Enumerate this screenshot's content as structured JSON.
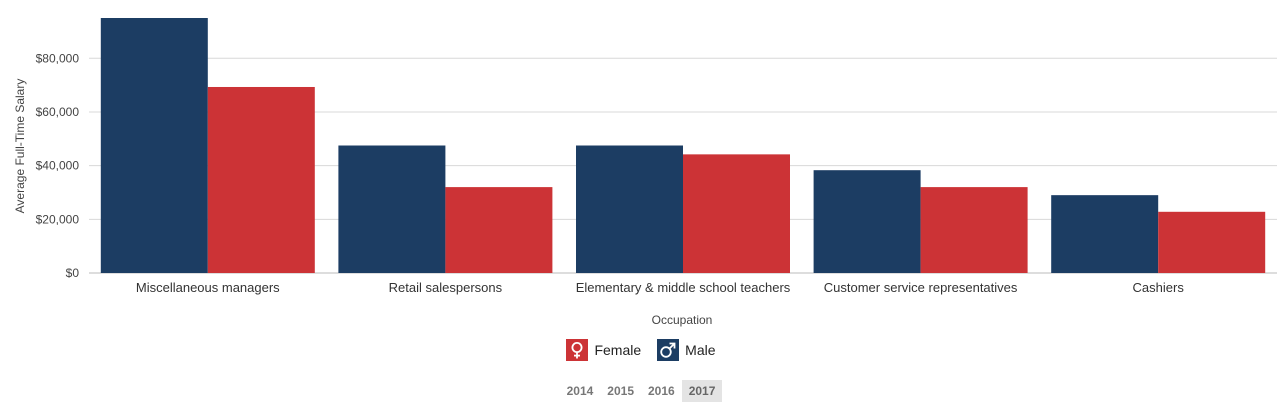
{
  "chart_data": {
    "type": "bar",
    "categories": [
      "Miscellaneous managers",
      "Retail salespersons",
      "Elementary & middle school teachers",
      "Customer service representatives",
      "Cashiers"
    ],
    "series": [
      {
        "name": "Male",
        "color": "#1c3d63",
        "values": [
          95000,
          47500,
          47500,
          38300,
          29000
        ]
      },
      {
        "name": "Female",
        "color": "#cc3336",
        "values": [
          69300,
          32000,
          44200,
          32000,
          22800
        ]
      }
    ],
    "xlabel": "Occupation",
    "ylabel": "Average Full-Time Salary",
    "ylim": [
      0,
      95000
    ],
    "yticks": [
      0,
      20000,
      40000,
      60000,
      80000
    ],
    "ytick_labels": [
      "$0",
      "$20,000",
      "$40,000",
      "$60,000",
      "$80,000"
    ],
    "grid": true
  },
  "legend": {
    "female": {
      "label": "Female",
      "icon": "female-symbol-icon",
      "color": "#cc3336"
    },
    "male": {
      "label": "Male",
      "icon": "male-symbol-icon",
      "color": "#1c3d63"
    }
  },
  "years": {
    "items": [
      "2014",
      "2015",
      "2016",
      "2017"
    ],
    "selected": "2017"
  }
}
